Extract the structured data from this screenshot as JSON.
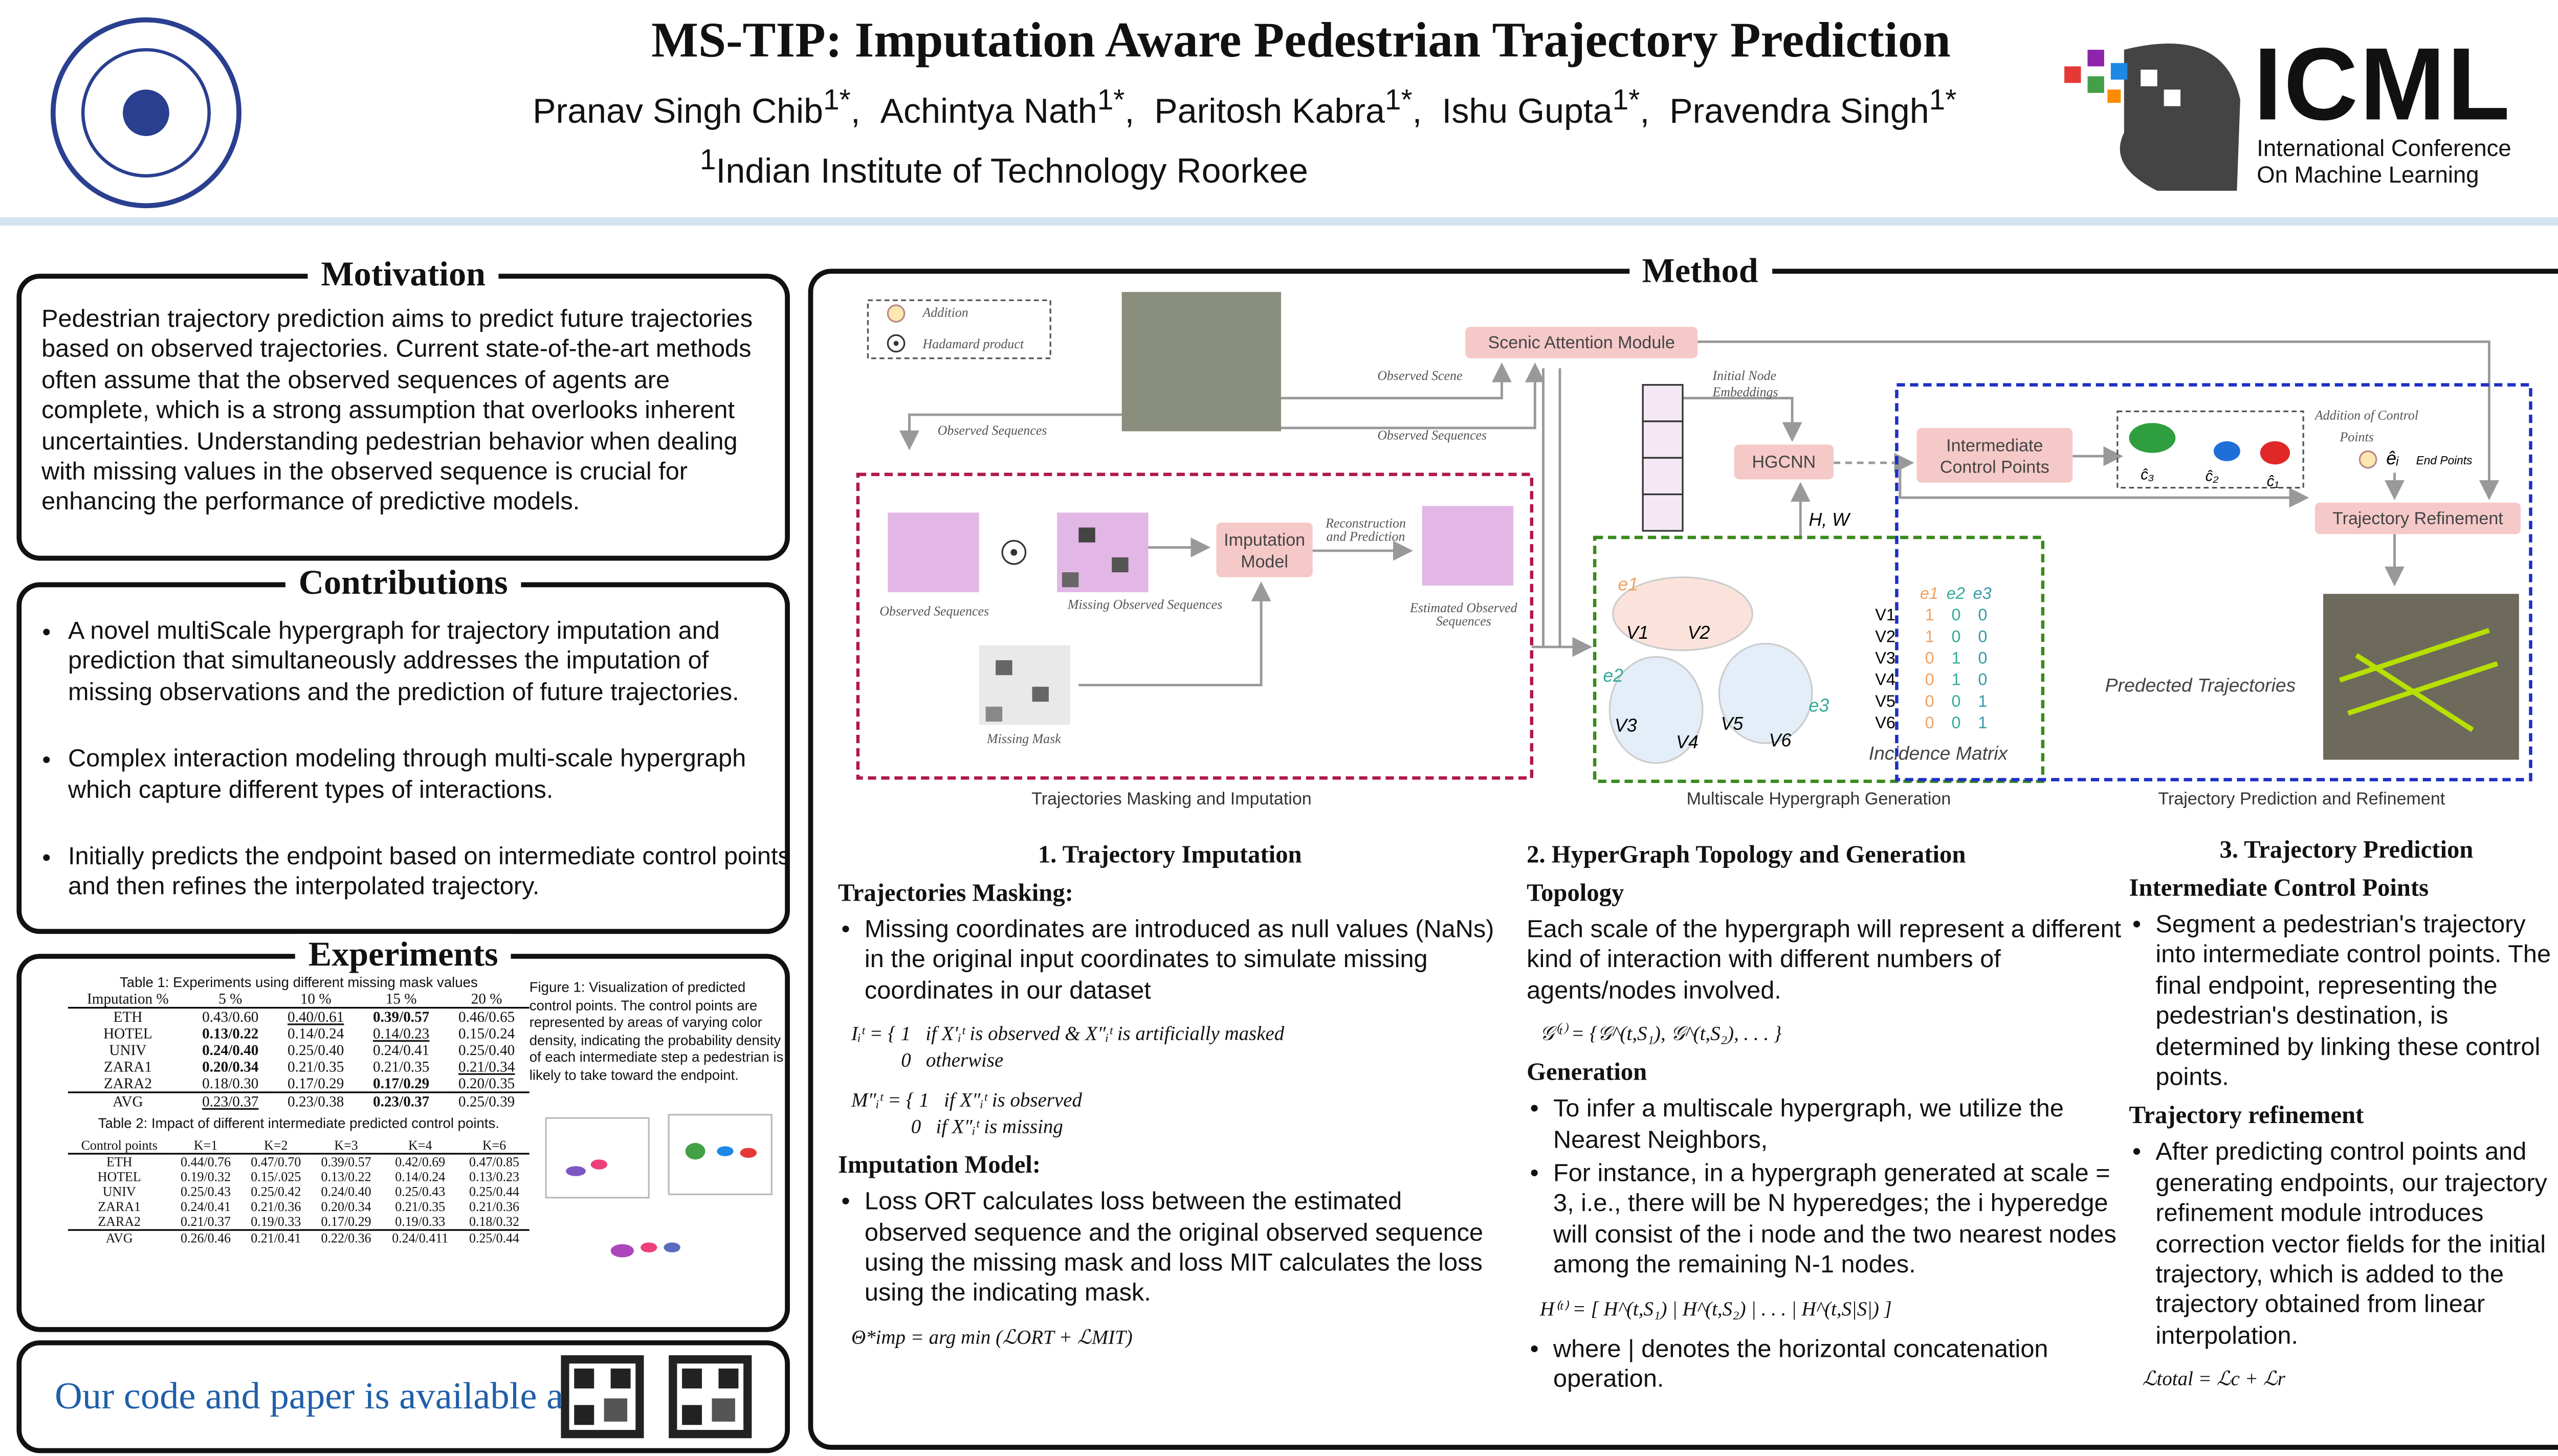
{
  "header": {
    "title": "MS-TIP: Imputation Aware Pedestrian Trajectory Prediction",
    "authors": [
      {
        "name": "Pranav Singh Chib",
        "sup": "1*"
      },
      {
        "name": "Achintya Nath",
        "sup": "1*"
      },
      {
        "name": "Paritosh Kabra",
        "sup": "1*"
      },
      {
        "name": "Ishu Gupta",
        "sup": "1*"
      },
      {
        "name": "Pravendra Singh",
        "sup": "1*"
      }
    ],
    "affiliation": {
      "sup": "1",
      "name": "Indian Institute of Technology Roorkee"
    },
    "conference": {
      "acronym": "ICML",
      "line1": "International Conference",
      "line2": "On Machine Learning"
    }
  },
  "motivation": {
    "title": "Motivation",
    "text": "Pedestrian trajectory prediction aims to predict future trajectories based on observed trajectories. Current state-of-the-art methods often assume that the observed sequences of agents are complete, which is a strong assumption that overlooks inherent uncertainties. Understanding pedestrian behavior when dealing with missing values in the observed sequence is crucial for enhancing the performance of predictive models."
  },
  "contributions": {
    "title": "Contributions",
    "items": [
      "A novel multiScale hypergraph for trajectory imputation and prediction that simultaneously addresses the imputation of missing observations and the prediction of future trajectories.",
      "Complex interaction modeling through multi-scale hypergraph which capture different types of interactions.",
      "Initially predicts the endpoint based on intermediate control points and then refines the interpolated trajectory."
    ]
  },
  "experiments": {
    "title": "Experiments",
    "table1": {
      "caption": "Table 1: Experiments using different missing mask values",
      "header": [
        "Imputation %",
        "5 %",
        "10 %",
        "15 %",
        "20 %"
      ],
      "rows": [
        [
          "ETH",
          "0.43/0.60",
          "0.40/0.61",
          "0.39/0.57",
          "0.46/0.65"
        ],
        [
          "HOTEL",
          "0.13/0.22",
          "0.14/0.24",
          "0.14/0.23",
          "0.15/0.24"
        ],
        [
          "UNIV",
          "0.24/0.40",
          "0.25/0.40",
          "0.24/0.41",
          "0.25/0.40"
        ],
        [
          "ZARA1",
          "0.20/0.34",
          "0.21/0.35",
          "0.21/0.35",
          "0.21/0.34"
        ],
        [
          "ZARA2",
          "0.18/0.30",
          "0.17/0.29",
          "0.17/0.29",
          "0.20/0.35"
        ],
        [
          "AVG",
          "0.23/0.37",
          "0.23/0.38",
          "0.23/0.37",
          "0.25/0.39"
        ]
      ],
      "bold": [
        [
          0,
          3
        ],
        [
          1,
          1
        ],
        [
          2,
          1
        ],
        [
          3,
          1
        ],
        [
          4,
          3
        ],
        [
          5,
          3
        ]
      ],
      "underline": [
        [
          0,
          2
        ],
        [
          1,
          3
        ],
        [
          3,
          4
        ],
        [
          5,
          1
        ]
      ]
    },
    "table2": {
      "caption": "Table 2: Impact of different intermediate predicted control points.",
      "header": [
        "Control points",
        "K=1",
        "K=2",
        "K=3",
        "K=4",
        "K=6"
      ],
      "rows": [
        [
          "ETH",
          "0.44/0.76",
          "0.47/0.70",
          "0.39/0.57",
          "0.42/0.69",
          "0.47/0.85"
        ],
        [
          "HOTEL",
          "0.19/0.32",
          "0.15/.025",
          "0.13/0.22",
          "0.14/0.24",
          "0.13/0.23"
        ],
        [
          "UNIV",
          "0.25/0.43",
          "0.25/0.42",
          "0.24/0.40",
          "0.25/0.43",
          "0.25/0.44"
        ],
        [
          "ZARA1",
          "0.24/0.41",
          "0.21/0.36",
          "0.20/0.34",
          "0.21/0.35",
          "0.21/0.36"
        ],
        [
          "ZARA2",
          "0.21/0.37",
          "0.19/0.33",
          "0.17/0.29",
          "0.19/0.33",
          "0.18/0.32"
        ],
        [
          "AVG",
          "0.26/0.46",
          "0.21/0.41",
          "0.22/0.36",
          "0.24/0.411",
          "0.25/0.44"
        ]
      ],
      "bold": [],
      "underline": []
    },
    "figure_caption": "Figure 1: Visualization of predicted control points. The control points are represented by areas of varying color density, indicating the probability density of each intermediate step a pedestrian is likely to take toward the endpoint."
  },
  "code": {
    "text": "Our code and paper is available at"
  },
  "method": {
    "title": "Method",
    "diagram": {
      "legend_addition": "Addition",
      "legend_hadamard": "Hadamard product",
      "observed_sequences_in": "Observed Sequences",
      "observed_scene": "Observed Scene",
      "observed_sequences_mid": "Observed Sequences",
      "scenic": "Scenic Attention Module",
      "node_embeddings": [
        "Initial Node",
        "Embeddings"
      ],
      "hgcnn": "HGCNN",
      "icp": [
        "Intermediate",
        "Control Points"
      ],
      "addition_cp": [
        "Addition of Control",
        "Points"
      ],
      "end_points": "End Points",
      "endpoint": "êᵢ",
      "control_points": [
        "ĉ₃",
        "ĉ₂",
        "ĉ₁"
      ],
      "refinement": "Trajectory Refinement",
      "imputation_model": [
        "Imputation",
        "Model"
      ],
      "recon": [
        "Reconstruction",
        "and Prediction"
      ],
      "obs_seq_label": "Observed Sequences",
      "missing_obs": "Missing Observed Sequences",
      "estimated": [
        "Estimated Observed",
        "Sequences"
      ],
      "missing_mask": "Missing Mask",
      "hw": "H, W",
      "predicted": "Predected Trajectories",
      "incidence": {
        "title": "Incidence Matrix",
        "columns": [
          "e1",
          "e2",
          "e3"
        ],
        "rows": [
          "V1",
          "V2",
          "V3",
          "V4",
          "V5",
          "V6"
        ],
        "values": [
          [
            1,
            0,
            0
          ],
          [
            1,
            0,
            0
          ],
          [
            0,
            1,
            0
          ],
          [
            0,
            1,
            0
          ],
          [
            0,
            0,
            1
          ],
          [
            0,
            0,
            1
          ]
        ]
      },
      "panels": [
        "Trajectories Masking and Imputation",
        "Multiscale Hypergraph Generation",
        "Trajectory Prediction and Refinement"
      ]
    },
    "sections": [
      {
        "title": "1. Trajectory Imputation",
        "blocks": [
          {
            "heading": "Trajectories Masking:"
          },
          {
            "bullet": "Missing coordinates are introduced as null values (NaNs) in the original input coordinates to simulate missing coordinates in our dataset"
          },
          {
            "equation": [
              "Iᵢᵗ = { 1   if X′ᵢᵗ is observed & X″ᵢᵗ is artificially masked",
              "          0   otherwise"
            ]
          },
          {
            "equation": [
              "M″ᵢᵗ = { 1   if X″ᵢᵗ is observed",
              "            0   if X″ᵢᵗ is missing"
            ]
          },
          {
            "heading": "Imputation Model:"
          },
          {
            "bullet": "Loss ORT calculates loss between the estimated observed sequence and the original observed sequence using the missing mask and loss MIT calculates the loss using the indicating mask."
          },
          {
            "equation": [
              "Θ*imp = arg min (ℒORT + ℒMIT)"
            ]
          }
        ]
      },
      {
        "title": "2. HyperGraph Topology and Generation",
        "blocks": [
          {
            "heading": "Topology"
          },
          {
            "text": "Each scale of the hypergraph will represent a different kind of interaction with different numbers of agents/nodes involved."
          },
          {
            "equation": [
              "𝒢⁽ᵗ⁾ = {𝒢^(t,S₁), 𝒢^(t,S₂), . . . }"
            ]
          },
          {
            "heading": "Generation"
          },
          {
            "bullet": "To infer a multiscale hypergraph, we utilize the Nearest Neighbors,"
          },
          {
            "bullet": "For instance, in a hypergraph generated at scale = 3, i.e., there will be N hyperedges; the i hyperedge will consist of the i node and the two nearest nodes among the remaining N-1 nodes."
          },
          {
            "equation": [
              "H⁽ᵗ⁾ = [ H^(t,S₁) | H^(t,S₂) | . . . | H^(t,S|S|) ]"
            ]
          },
          {
            "bullet": "where | denotes the horizontal concatenation operation."
          }
        ]
      },
      {
        "title": "3. Trajectory Prediction",
        "blocks": [
          {
            "heading": "Intermediate Control Points"
          },
          {
            "bullet": "Segment a pedestrian's trajectory into intermediate control points. The final endpoint, representing the pedestrian's destination, is determined by linking these control points."
          },
          {
            "heading": "Trajectory refinement"
          },
          {
            "bullet": "After predicting control points and generating endpoints, our trajectory refinement module introduces correction vector fields for the initial trajectory, which is added to the trajectory obtained from linear interpolation."
          },
          {
            "equation": [
              "ℒtotal = ℒc + ℒr"
            ]
          }
        ]
      }
    ]
  }
}
